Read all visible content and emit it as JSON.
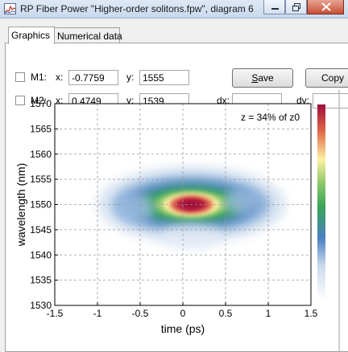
{
  "window": {
    "title": "RP Fiber Power \"Higher-order solitons.fpw\", diagram 6"
  },
  "tabs": [
    {
      "label": "Graphics",
      "active": true
    },
    {
      "label": "Numerical data",
      "active": false
    }
  ],
  "markers": {
    "m1": {
      "label": "M1:",
      "x_label": "x:",
      "x_value": "-0.7759",
      "y_label": "y:",
      "y_value": "1555",
      "checked": false
    },
    "m2": {
      "label": "M2:",
      "x_label": "x:",
      "x_value": "0.4749",
      "y_label": "y:",
      "y_value": "1539",
      "checked": false
    },
    "dx_label": "dx:",
    "dx_value": "",
    "dy_label": "dy:",
    "dy_value": ""
  },
  "buttons": {
    "save_key": "S",
    "save_rest": "ave",
    "copy_label": "Copy"
  },
  "chart_data": {
    "type": "heatmap",
    "title": "",
    "annotation": "z = 34% of z0",
    "xlabel": "time (ps)",
    "ylabel": "wavelength (nm)",
    "xlim": [
      -1.5,
      1.5
    ],
    "ylim": [
      1530,
      1570
    ],
    "x_ticks": [
      "-1.5",
      "-1",
      "-0.5",
      "0",
      "0.5",
      "1",
      "1.5"
    ],
    "y_ticks": [
      "1570",
      "1565",
      "1560",
      "1555",
      "1550",
      "1545",
      "1540",
      "1535",
      "1530"
    ],
    "grid": true,
    "colormap": [
      "#ffffff",
      "#4a7fc0",
      "#3aa55a",
      "#fdf1a5",
      "#9e0d3a"
    ],
    "peak": {
      "time": 0.1,
      "wavelength": 1550
    },
    "colorbar": "right"
  }
}
